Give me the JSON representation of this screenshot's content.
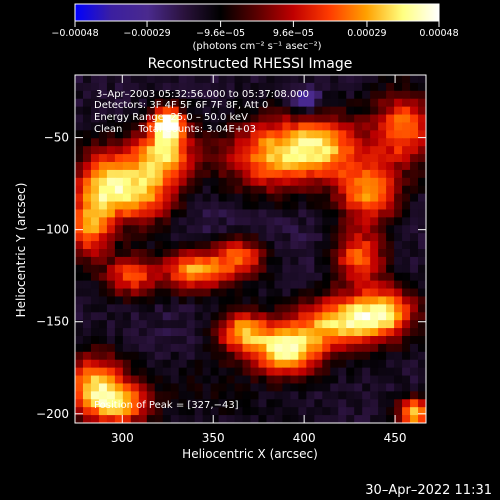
{
  "chart_data": {
    "type": "heatmap",
    "title": "Reconstructed RHESSI Image",
    "xlabel": "Heliocentric X (arcsec)",
    "ylabel": "Heliocentric Y (arcsec)",
    "xlim": [
      274,
      467
    ],
    "ylim": [
      -205,
      -16
    ],
    "x_ticks": [
      300,
      350,
      400,
      450
    ],
    "x_tick_labels": [
      "300",
      "350",
      "400",
      "450"
    ],
    "y_ticks": [
      -50,
      -100,
      -150,
      -200
    ],
    "y_tick_labels": [
      "−50",
      "−100",
      "−150",
      "−200"
    ],
    "colorbar": {
      "range": [
        -0.00048,
        0.00048
      ],
      "tick_values": [
        -0.00048,
        -0.00029,
        -9.6e-05,
        9.6e-05,
        0.00029,
        0.00048
      ],
      "tick_labels": [
        "−0.00048",
        "−0.00029",
        "−9.6e−05",
        "9.6e−05",
        "0.00029",
        "0.00048"
      ],
      "colors": [
        "#0000ff",
        "#3b1fa0",
        "#4a2a8e",
        "#2a123c",
        "#000000",
        "#5a0000",
        "#c00000",
        "#ff3c00",
        "#ffa000",
        "#ffff80",
        "#ffffff"
      ],
      "unit": "(photons cm⁻² s⁻¹ asec⁻²)"
    },
    "annotations": [
      "3–Apr–2003 05:32:56.000 to 05:37:08.000",
      "Detectors: 3F 4F 5F 6F 7F 8F, Att 0",
      "Energy Range: 25.0 – 50.0 keV",
      "Clean     Total Counts: 3.04E+03"
    ],
    "peak_text": "Position of Peak = [327,−43]",
    "peak": [
      327,
      -43
    ],
    "hot_spots": [
      {
        "x": 325,
        "y": -42,
        "v": 0.00047,
        "rx": 6,
        "ry": 6
      },
      {
        "x": 323,
        "y": -58,
        "v": 0.0003,
        "rx": 12,
        "ry": 10
      },
      {
        "x": 312,
        "y": -80,
        "v": 0.00024,
        "rx": 14,
        "ry": 12
      },
      {
        "x": 290,
        "y": -75,
        "v": 0.00026,
        "rx": 12,
        "ry": 14
      },
      {
        "x": 282,
        "y": -100,
        "v": 0.00022,
        "rx": 8,
        "ry": 12
      },
      {
        "x": 305,
        "y": -125,
        "v": 0.0002,
        "rx": 10,
        "ry": 8
      },
      {
        "x": 340,
        "y": -122,
        "v": 0.0003,
        "rx": 12,
        "ry": 8
      },
      {
        "x": 365,
        "y": -115,
        "v": 0.0002,
        "rx": 10,
        "ry": 8
      },
      {
        "x": 380,
        "y": -60,
        "v": 0.00024,
        "rx": 18,
        "ry": 14
      },
      {
        "x": 410,
        "y": -55,
        "v": 0.00028,
        "rx": 16,
        "ry": 12
      },
      {
        "x": 435,
        "y": -80,
        "v": 0.00026,
        "rx": 12,
        "ry": 12
      },
      {
        "x": 455,
        "y": -45,
        "v": 0.00024,
        "rx": 12,
        "ry": 14
      },
      {
        "x": 390,
        "y": -165,
        "v": 0.0004,
        "rx": 14,
        "ry": 10
      },
      {
        "x": 420,
        "y": -150,
        "v": 0.00032,
        "rx": 16,
        "ry": 10
      },
      {
        "x": 445,
        "y": -145,
        "v": 0.00028,
        "rx": 12,
        "ry": 10
      },
      {
        "x": 365,
        "y": -155,
        "v": 0.00024,
        "rx": 10,
        "ry": 8
      },
      {
        "x": 285,
        "y": -185,
        "v": 0.0003,
        "rx": 12,
        "ry": 12
      },
      {
        "x": 300,
        "y": -195,
        "v": 0.00022,
        "rx": 12,
        "ry": 8
      },
      {
        "x": 460,
        "y": -200,
        "v": 0.00036,
        "rx": 6,
        "ry": 6
      },
      {
        "x": 430,
        "y": -115,
        "v": 0.00022,
        "rx": 10,
        "ry": 10
      },
      {
        "x": 345,
        "y": -185,
        "v": -0.0001,
        "rx": 20,
        "ry": 14
      },
      {
        "x": 380,
        "y": -200,
        "v": -0.00014,
        "rx": 16,
        "ry": 8
      }
    ],
    "cold_spots": [
      {
        "x": 400,
        "y": -30,
        "v": -0.0004,
        "rx": 6,
        "ry": 5
      },
      {
        "x": 345,
        "y": -95,
        "v": -0.0002,
        "rx": 20,
        "ry": 14
      },
      {
        "x": 395,
        "y": -100,
        "v": -0.00018,
        "rx": 18,
        "ry": 16
      },
      {
        "x": 330,
        "y": -155,
        "v": -0.00018,
        "rx": 16,
        "ry": 12
      }
    ]
  },
  "footer": {
    "timestamp": "30–Apr–2022 11:31"
  }
}
